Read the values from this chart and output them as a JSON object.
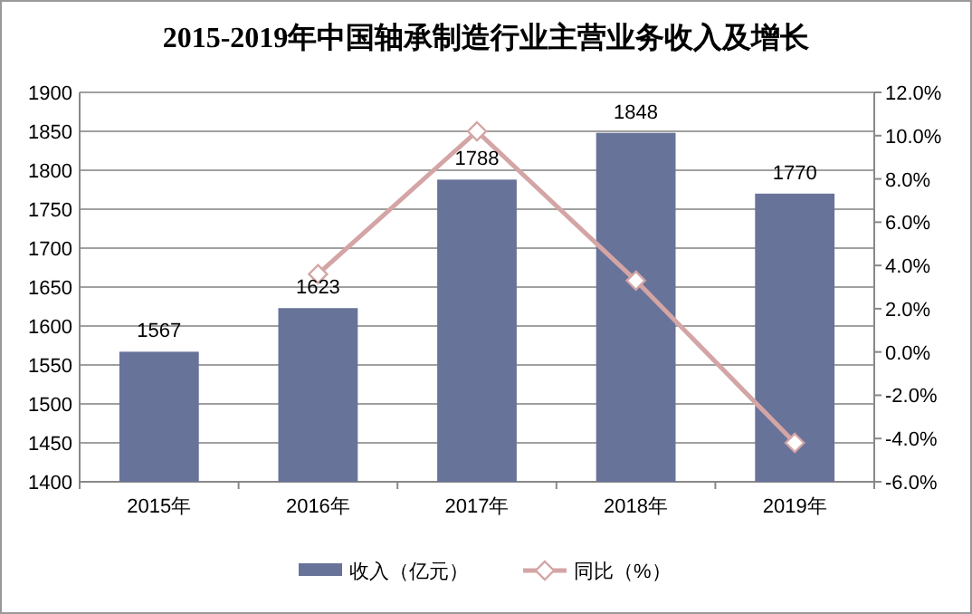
{
  "chart_data": {
    "type": "bar",
    "title": "2015-2019年中国轴承制造行业主营业务收入及增长",
    "categories": [
      "2015年",
      "2016年",
      "2017年",
      "2018年",
      "2019年"
    ],
    "series": [
      {
        "name": "收入（亿元）",
        "color": "#68739a",
        "values": [
          1567,
          1623,
          1788,
          1848,
          1770
        ],
        "value_labels": [
          "1567",
          "1623",
          "1788",
          "1848",
          "1770"
        ]
      },
      {
        "name": "同比（%）",
        "type": "line",
        "axis": "y2",
        "color": "#d4a5a5",
        "marker": "diamond",
        "values": [
          null,
          3.6,
          10.2,
          3.3,
          -4.2
        ]
      }
    ],
    "ylim": [
      1400,
      1900
    ],
    "yticks": [
      1400,
      1450,
      1500,
      1550,
      1600,
      1650,
      1700,
      1750,
      1800,
      1850,
      1900
    ],
    "y2lim": [
      -6,
      12
    ],
    "y2ticks": [
      {
        "value": -6,
        "label": "-6.0%"
      },
      {
        "value": -4,
        "label": "-4.0%"
      },
      {
        "value": -2,
        "label": "-2.0%"
      },
      {
        "value": 0,
        "label": "0.0%"
      },
      {
        "value": 2,
        "label": "2.0%"
      },
      {
        "value": 4,
        "label": "4.0%"
      },
      {
        "value": 6,
        "label": "6.0%"
      },
      {
        "value": 8,
        "label": "8.0%"
      },
      {
        "value": 10,
        "label": "10.0%"
      },
      {
        "value": 12,
        "label": "12.0%"
      }
    ],
    "grid": "y",
    "legend": "bottom"
  }
}
